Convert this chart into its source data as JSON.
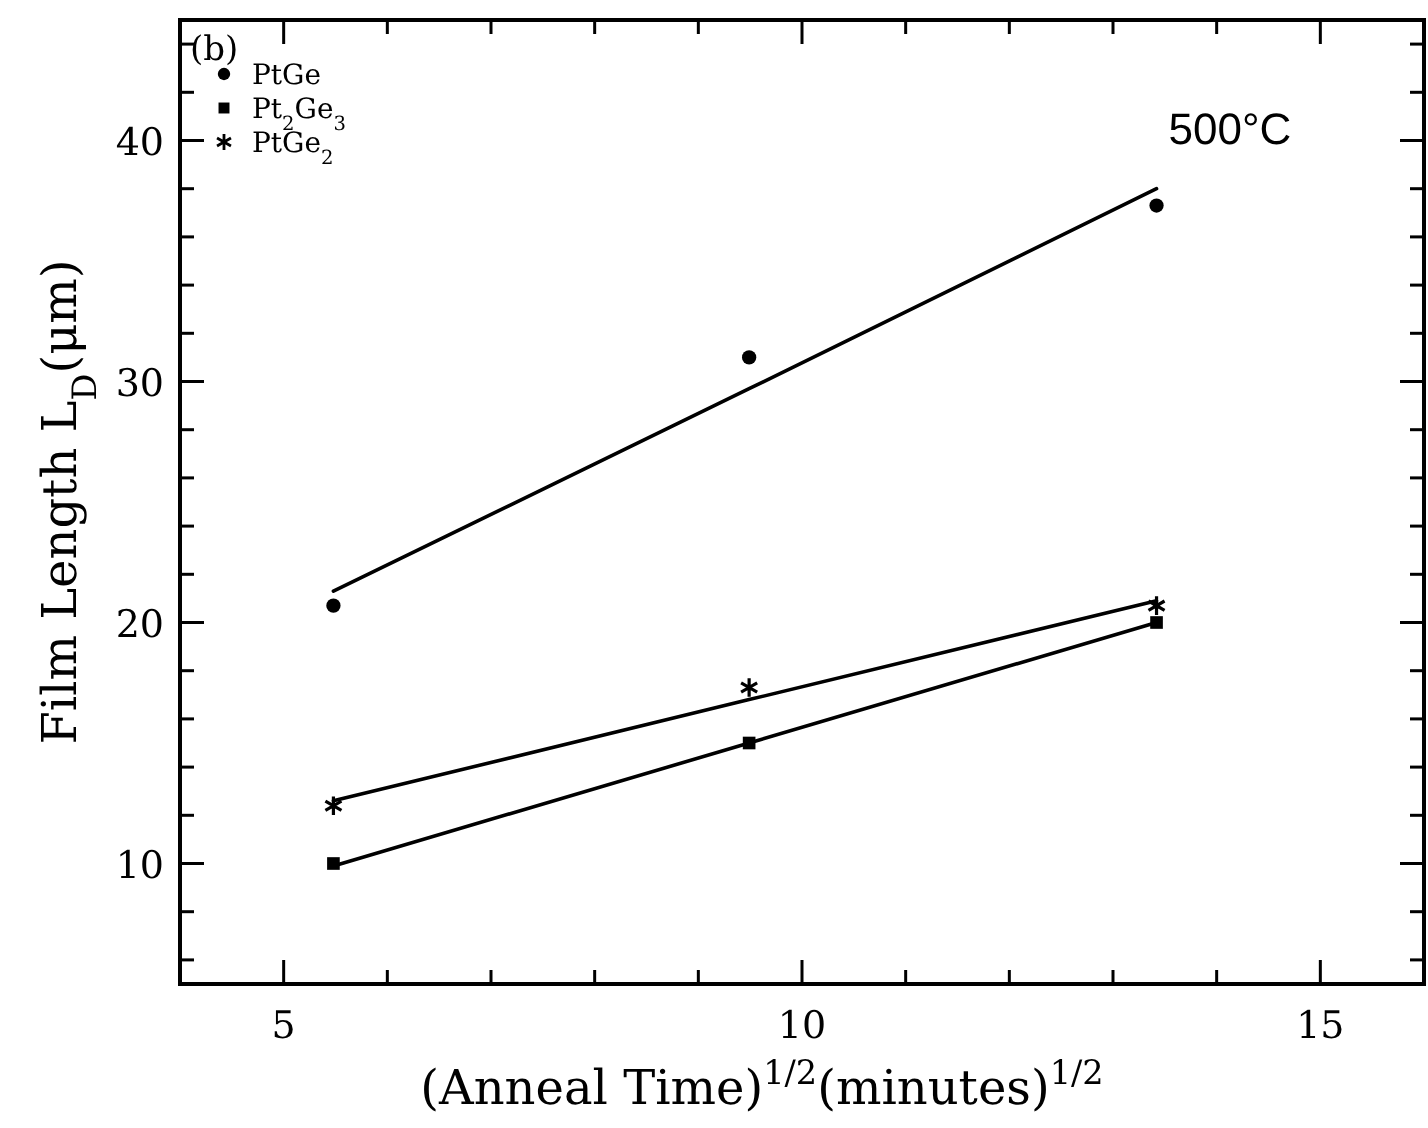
{
  "chart_data": {
    "type": "scatter",
    "xlabel": "(Anneal Time)$^{1/2}$(minutes)$^{1/2}$",
    "ylabel": "Film Length L$_{D}$(μm)",
    "xlim": [
      4,
      16
    ],
    "ylim": [
      5,
      45
    ],
    "xticks": [
      {
        "value": 4,
        "label": null
      },
      5,
      {
        "value": 6,
        "label": null
      },
      {
        "value": 7,
        "label": null
      },
      {
        "value": 8,
        "label": null
      },
      {
        "value": 9,
        "label": null
      },
      10,
      {
        "value": 11,
        "label": null
      },
      {
        "value": 12,
        "label": null
      },
      {
        "value": 13,
        "label": null
      },
      {
        "value": 14,
        "label": null
      },
      15,
      {
        "value": 16,
        "label": null
      }
    ],
    "yticks": [
      {
        "value": 6,
        "label": null
      },
      {
        "value": 8,
        "label": null
      },
      10,
      {
        "value": 12,
        "label": null
      },
      {
        "value": 14,
        "label": null
      },
      {
        "value": 16,
        "label": null
      },
      {
        "value": 18,
        "label": null
      },
      20,
      {
        "value": 22,
        "label": null
      },
      {
        "value": 24,
        "label": null
      },
      {
        "value": 26,
        "label": null
      },
      {
        "value": 28,
        "label": null
      },
      30,
      {
        "value": 32,
        "label": null
      },
      {
        "value": 34,
        "label": null
      },
      {
        "value": 36,
        "label": null
      },
      {
        "value": 38,
        "label": null
      },
      40,
      {
        "value": 42,
        "label": null
      },
      {
        "value": 44,
        "label": null
      }
    ],
    "x": [
      5.48,
      9.49,
      13.42
    ],
    "series": [
      {
        "name": "PtGe",
        "color": "#000000",
        "marker": "circle",
        "values": [
          20.7,
          31.0,
          37.3
        ]
      },
      {
        "name": "Pt$_{2}$Ge$_{3}$",
        "color": "#000000",
        "marker": "square",
        "values": [
          10.0,
          15.0,
          20.0
        ]
      },
      {
        "name": "PtGe$_{2}$",
        "color": "#000000",
        "marker": "cross",
        "values": [
          12.4,
          17.3,
          20.7
        ]
      },
      {
        "type": "line",
        "color": "#000000",
        "values": [
          21.3,
          29.7,
          38.0
        ]
      },
      {
        "type": "line",
        "color": "#000000",
        "values": [
          9.9,
          15.0,
          20.0
        ]
      },
      {
        "type": "line",
        "color": "#000000",
        "values": [
          12.6,
          16.8,
          20.9
        ]
      }
    ],
    "legend": "top left",
    "grid": false,
    "annotations": [
      "(b)",
      "500°C"
    ]
  }
}
